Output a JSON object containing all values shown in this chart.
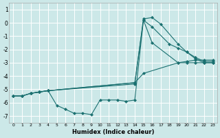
{
  "xlabel": "Humidex (Indice chaleur)",
  "bg_color": "#cce8e8",
  "grid_color": "#ffffff",
  "line_color": "#1a7070",
  "xlim": [
    -0.5,
    23.5
  ],
  "ylim": [
    -7.5,
    1.5
  ],
  "xticks": [
    0,
    1,
    2,
    3,
    4,
    5,
    6,
    7,
    8,
    9,
    10,
    11,
    12,
    13,
    14,
    15,
    16,
    17,
    18,
    19,
    20,
    21,
    22,
    23
  ],
  "yticks": [
    1,
    0,
    -1,
    -2,
    -3,
    -4,
    -5,
    -6,
    -7
  ],
  "series": [
    {
      "x": [
        0,
        1,
        2,
        3,
        4,
        14,
        15,
        16,
        17,
        19,
        20,
        21,
        22,
        23
      ],
      "y": [
        -5.5,
        -5.5,
        -5.3,
        -5.2,
        -5.1,
        -4.6,
        0.3,
        0.4,
        -0.1,
        -1.6,
        -2.2,
        -2.7,
        -3.0,
        -3.0
      ]
    },
    {
      "x": [
        0,
        1,
        2,
        3,
        4,
        14,
        15,
        16,
        18,
        19,
        20,
        21,
        22,
        23
      ],
      "y": [
        -5.5,
        -5.5,
        -5.3,
        -5.2,
        -5.1,
        -4.5,
        0.2,
        -0.3,
        -1.6,
        -1.9,
        -2.2,
        -2.6,
        -2.9,
        -2.9
      ]
    },
    {
      "x": [
        0,
        1,
        2,
        3,
        4,
        14,
        15,
        19,
        20,
        21,
        22,
        23
      ],
      "y": [
        -5.5,
        -5.5,
        -5.3,
        -5.2,
        -5.1,
        -4.5,
        -3.8,
        -3.0,
        -2.9,
        -2.8,
        -2.8,
        -2.8
      ]
    },
    {
      "x": [
        2,
        3,
        4,
        5,
        6,
        7,
        8,
        9,
        10,
        11,
        12,
        13,
        14,
        15,
        16,
        19,
        20,
        21,
        22,
        23
      ],
      "y": [
        -5.3,
        -5.2,
        -5.1,
        -6.2,
        -6.5,
        -6.8,
        -6.8,
        -6.9,
        -5.8,
        -5.8,
        -5.8,
        -5.9,
        -5.8,
        0.2,
        -1.5,
        -3.0,
        -3.0,
        -3.0,
        -3.0,
        -3.0
      ]
    }
  ]
}
